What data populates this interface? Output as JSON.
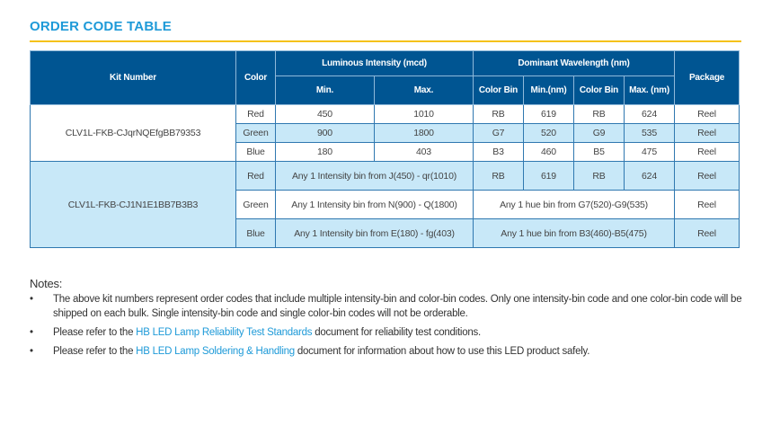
{
  "title": "ORDER CODE TABLE",
  "table": {
    "headers": {
      "kit": "Kit Number",
      "color": "Color",
      "lum": "Luminous Intensity (mcd)",
      "wave": "Dominant Wavelength (nm)",
      "package": "Package",
      "min": "Min.",
      "max": "Max.",
      "color_bin1": "Color Bin",
      "min_nm": "Min.(nm)",
      "color_bin2": "Color Bin",
      "max_nm": "Max. (nm)"
    },
    "kit1": {
      "kit": "CLV1L-FKB-CJqrNQEfgBB79353",
      "rows": [
        {
          "color": "Red",
          "min": "450",
          "max": "1010",
          "bin1": "RB",
          "wmin": "619",
          "bin2": "RB",
          "wmax": "624",
          "pkg": "Reel"
        },
        {
          "color": "Green",
          "min": "900",
          "max": "1800",
          "bin1": "G7",
          "wmin": "520",
          "bin2": "G9",
          "wmax": "535",
          "pkg": "Reel"
        },
        {
          "color": "Blue",
          "min": "180",
          "max": "403",
          "bin1": "B3",
          "wmin": "460",
          "bin2": "B5",
          "wmax": "475",
          "pkg": "Reel"
        }
      ]
    },
    "kit2": {
      "kit": "CLV1L-FKB-CJ1N1E1BB7B3B3",
      "rows": [
        {
          "color": "Red",
          "intensity": "Any 1 Intensity bin from J(450) - qr(1010)",
          "bin1": "RB",
          "wmin": "619",
          "bin2": "RB",
          "wmax": "624",
          "pkg": "Reel"
        },
        {
          "color": "Green",
          "intensity": "Any 1 Intensity bin from N(900) - Q(1800)",
          "hue": "Any 1 hue bin from G7(520)-G9(535)",
          "pkg": "Reel"
        },
        {
          "color": "Blue",
          "intensity": "Any 1 Intensity bin from E(180) - fg(403)",
          "hue": "Any 1 hue bin from B3(460)-B5(475)",
          "pkg": "Reel"
        }
      ]
    }
  },
  "notes": {
    "heading": "Notes:",
    "bullet": "•",
    "n1": "The above kit numbers represent order codes that include multiple intensity-bin and color-bin codes. Only one intensity-bin code and one color-bin code will be shipped on each bulk. Single intensity-bin code and single color-bin codes will not be orderable.",
    "n2_pre": "Please refer to the ",
    "n2_link": "HB LED Lamp Reliability Test Standards",
    "n2_post": " document for reliability test conditions.",
    "n3_pre": "Please refer to the ",
    "n3_link": "HB LED Lamp Soldering & Handling",
    "n3_post": " document for information about how to use this LED product safely."
  },
  "colors": {
    "header": "#005592",
    "light": "#c8e8f8",
    "title": "#1e9ad8",
    "rule": "#f5c21b"
  }
}
